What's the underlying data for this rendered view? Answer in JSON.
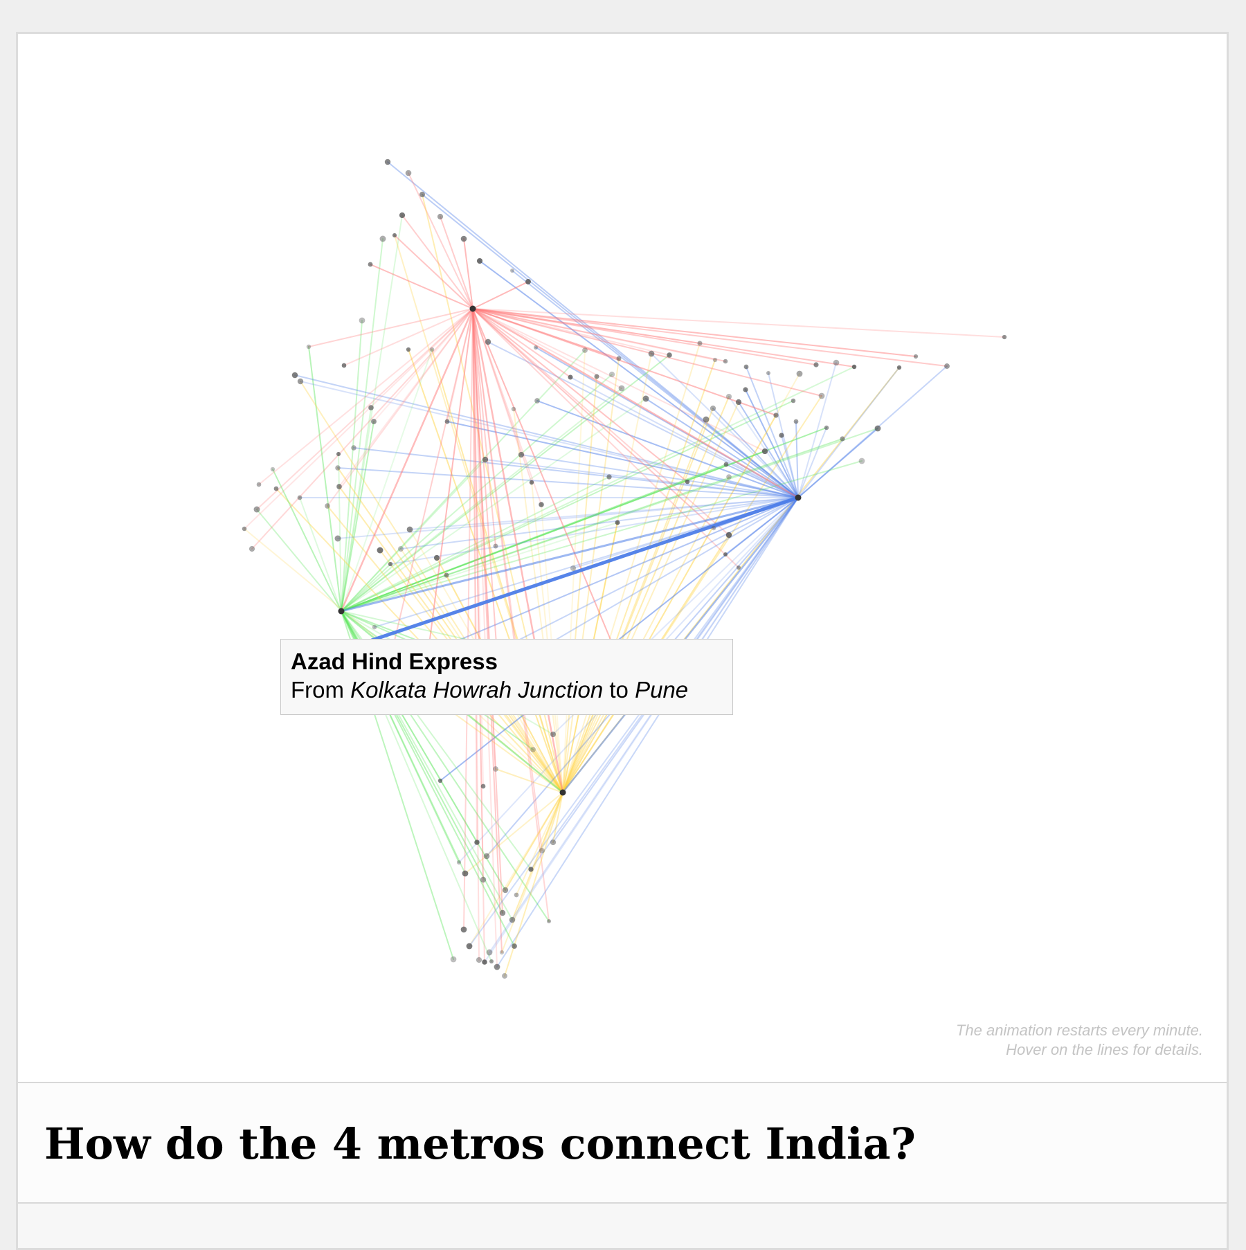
{
  "colors": {
    "delhi": "#ff7a7a",
    "kolkata": "#4d7de8",
    "mumbai": "#5de65d",
    "chennai": "#ffd23f",
    "node": "#555555",
    "tooltip_bg": "#f8f8f8",
    "note": "#c4c4c4"
  },
  "tooltip": {
    "train": "Azad Hind Express",
    "from_word": "From",
    "from": "Kolkata Howrah Junction",
    "to_word": "to",
    "to": "Pune"
  },
  "note": {
    "line1": "The animation restarts every minute.",
    "line2": "Hover on the lines for details."
  },
  "title": "How do the 4 metros connect India?"
}
